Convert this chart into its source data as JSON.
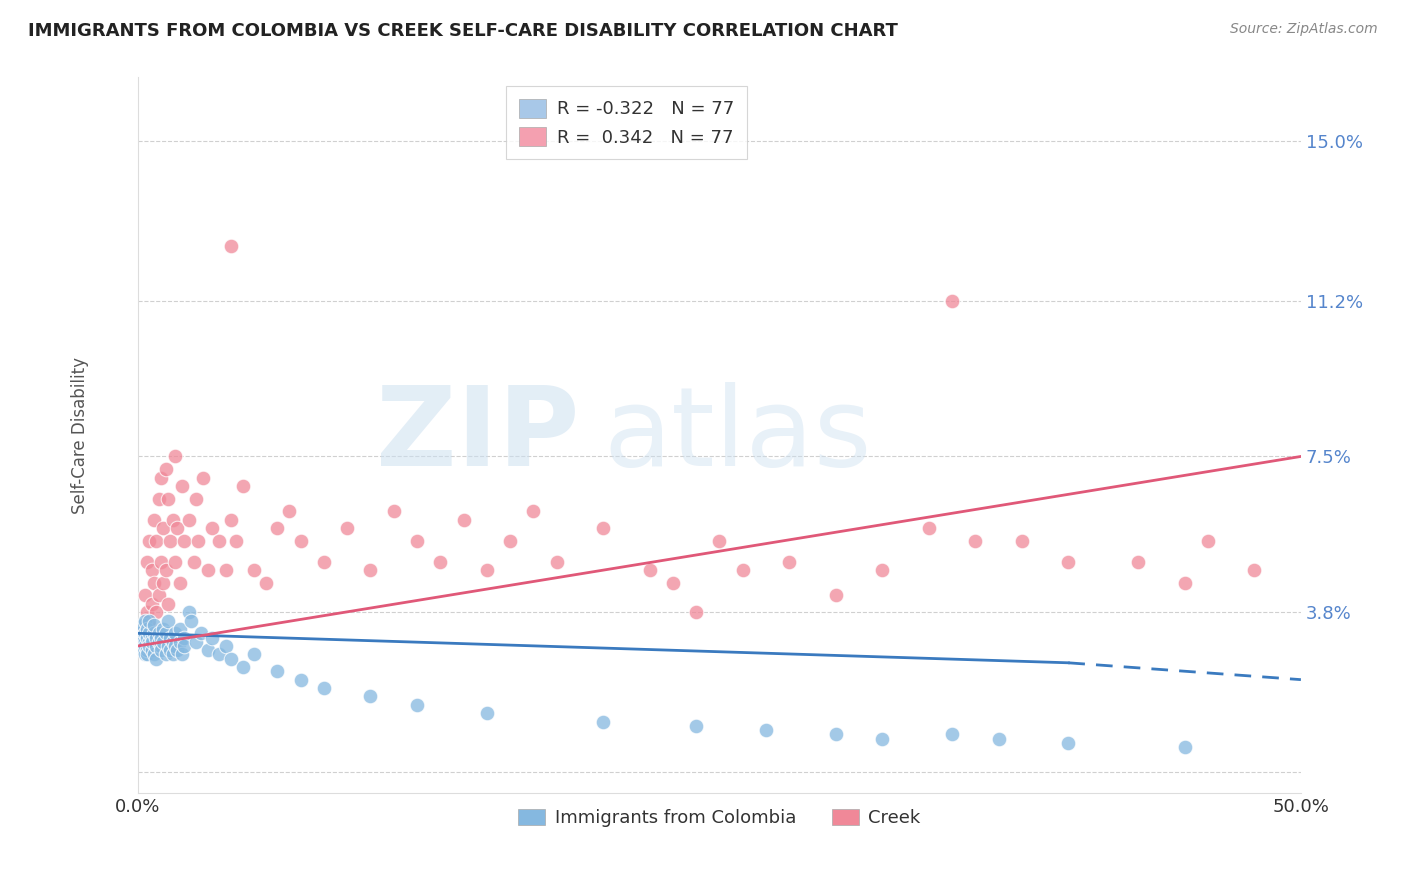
{
  "title": "IMMIGRANTS FROM COLOMBIA VS CREEK SELF-CARE DISABILITY CORRELATION CHART",
  "source": "Source: ZipAtlas.com",
  "ylabel": "Self-Care Disability",
  "xlim": [
    0.0,
    0.5
  ],
  "ylim": [
    -0.005,
    0.165
  ],
  "yticks": [
    0.0,
    0.038,
    0.075,
    0.112,
    0.15
  ],
  "ytick_labels": [
    "",
    "3.8%",
    "7.5%",
    "11.2%",
    "15.0%"
  ],
  "xticks": [
    0.0,
    0.1,
    0.2,
    0.3,
    0.4,
    0.5
  ],
  "xtick_labels": [
    "0.0%",
    "",
    "",
    "",
    "",
    "50.0%"
  ],
  "legend_entries": [
    {
      "color": "#a8c8e8",
      "label": "R = -0.322   N = 77"
    },
    {
      "color": "#f4a0b0",
      "label": "R =  0.342   N = 77"
    }
  ],
  "colombia_color": "#85b8e0",
  "creek_color": "#f08898",
  "colombia_line_color": "#3a7abf",
  "creek_line_color": "#e05878",
  "background_color": "#ffffff",
  "grid_color": "#d0d0d0",
  "right_axis_color": "#5585cc",
  "colombia_scatter": [
    [
      0.001,
      0.03
    ],
    [
      0.001,
      0.033
    ],
    [
      0.002,
      0.032
    ],
    [
      0.002,
      0.029
    ],
    [
      0.002,
      0.031
    ],
    [
      0.002,
      0.035
    ],
    [
      0.003,
      0.028
    ],
    [
      0.003,
      0.031
    ],
    [
      0.003,
      0.033
    ],
    [
      0.003,
      0.036
    ],
    [
      0.003,
      0.03
    ],
    [
      0.004,
      0.032
    ],
    [
      0.004,
      0.029
    ],
    [
      0.004,
      0.034
    ],
    [
      0.004,
      0.028
    ],
    [
      0.005,
      0.031
    ],
    [
      0.005,
      0.033
    ],
    [
      0.005,
      0.03
    ],
    [
      0.005,
      0.036
    ],
    [
      0.006,
      0.029
    ],
    [
      0.006,
      0.032
    ],
    [
      0.006,
      0.031
    ],
    [
      0.007,
      0.033
    ],
    [
      0.007,
      0.028
    ],
    [
      0.007,
      0.035
    ],
    [
      0.008,
      0.03
    ],
    [
      0.008,
      0.032
    ],
    [
      0.008,
      0.027
    ],
    [
      0.009,
      0.031
    ],
    [
      0.009,
      0.033
    ],
    [
      0.01,
      0.03
    ],
    [
      0.01,
      0.032
    ],
    [
      0.01,
      0.029
    ],
    [
      0.011,
      0.034
    ],
    [
      0.011,
      0.031
    ],
    [
      0.012,
      0.028
    ],
    [
      0.012,
      0.033
    ],
    [
      0.013,
      0.03
    ],
    [
      0.013,
      0.036
    ],
    [
      0.014,
      0.029
    ],
    [
      0.014,
      0.032
    ],
    [
      0.015,
      0.031
    ],
    [
      0.015,
      0.028
    ],
    [
      0.016,
      0.033
    ],
    [
      0.016,
      0.03
    ],
    [
      0.017,
      0.029
    ],
    [
      0.018,
      0.031
    ],
    [
      0.018,
      0.034
    ],
    [
      0.019,
      0.028
    ],
    [
      0.02,
      0.032
    ],
    [
      0.02,
      0.03
    ],
    [
      0.022,
      0.038
    ],
    [
      0.023,
      0.036
    ],
    [
      0.025,
      0.031
    ],
    [
      0.027,
      0.033
    ],
    [
      0.03,
      0.029
    ],
    [
      0.032,
      0.032
    ],
    [
      0.035,
      0.028
    ],
    [
      0.038,
      0.03
    ],
    [
      0.04,
      0.027
    ],
    [
      0.045,
      0.025
    ],
    [
      0.05,
      0.028
    ],
    [
      0.06,
      0.024
    ],
    [
      0.07,
      0.022
    ],
    [
      0.08,
      0.02
    ],
    [
      0.1,
      0.018
    ],
    [
      0.12,
      0.016
    ],
    [
      0.15,
      0.014
    ],
    [
      0.2,
      0.012
    ],
    [
      0.24,
      0.011
    ],
    [
      0.27,
      0.01
    ],
    [
      0.3,
      0.009
    ],
    [
      0.32,
      0.008
    ],
    [
      0.35,
      0.009
    ],
    [
      0.37,
      0.008
    ],
    [
      0.4,
      0.007
    ],
    [
      0.45,
      0.006
    ]
  ],
  "creek_scatter": [
    [
      0.002,
      0.033
    ],
    [
      0.003,
      0.042
    ],
    [
      0.004,
      0.038
    ],
    [
      0.004,
      0.05
    ],
    [
      0.005,
      0.035
    ],
    [
      0.005,
      0.055
    ],
    [
      0.006,
      0.04
    ],
    [
      0.006,
      0.048
    ],
    [
      0.007,
      0.045
    ],
    [
      0.007,
      0.06
    ],
    [
      0.008,
      0.038
    ],
    [
      0.008,
      0.055
    ],
    [
      0.009,
      0.042
    ],
    [
      0.009,
      0.065
    ],
    [
      0.01,
      0.05
    ],
    [
      0.01,
      0.07
    ],
    [
      0.011,
      0.045
    ],
    [
      0.011,
      0.058
    ],
    [
      0.012,
      0.048
    ],
    [
      0.012,
      0.072
    ],
    [
      0.013,
      0.04
    ],
    [
      0.013,
      0.065
    ],
    [
      0.014,
      0.055
    ],
    [
      0.015,
      0.06
    ],
    [
      0.016,
      0.05
    ],
    [
      0.016,
      0.075
    ],
    [
      0.017,
      0.058
    ],
    [
      0.018,
      0.045
    ],
    [
      0.019,
      0.068
    ],
    [
      0.02,
      0.055
    ],
    [
      0.022,
      0.06
    ],
    [
      0.024,
      0.05
    ],
    [
      0.025,
      0.065
    ],
    [
      0.026,
      0.055
    ],
    [
      0.028,
      0.07
    ],
    [
      0.03,
      0.048
    ],
    [
      0.032,
      0.058
    ],
    [
      0.035,
      0.055
    ],
    [
      0.038,
      0.048
    ],
    [
      0.04,
      0.06
    ],
    [
      0.04,
      0.125
    ],
    [
      0.042,
      0.055
    ],
    [
      0.045,
      0.068
    ],
    [
      0.05,
      0.048
    ],
    [
      0.055,
      0.045
    ],
    [
      0.06,
      0.058
    ],
    [
      0.065,
      0.062
    ],
    [
      0.07,
      0.055
    ],
    [
      0.08,
      0.05
    ],
    [
      0.09,
      0.058
    ],
    [
      0.1,
      0.048
    ],
    [
      0.11,
      0.062
    ],
    [
      0.12,
      0.055
    ],
    [
      0.13,
      0.05
    ],
    [
      0.14,
      0.06
    ],
    [
      0.15,
      0.048
    ],
    [
      0.16,
      0.055
    ],
    [
      0.17,
      0.062
    ],
    [
      0.18,
      0.05
    ],
    [
      0.2,
      0.058
    ],
    [
      0.22,
      0.048
    ],
    [
      0.23,
      0.045
    ],
    [
      0.24,
      0.038
    ],
    [
      0.25,
      0.055
    ],
    [
      0.26,
      0.048
    ],
    [
      0.28,
      0.05
    ],
    [
      0.3,
      0.042
    ],
    [
      0.32,
      0.048
    ],
    [
      0.34,
      0.058
    ],
    [
      0.36,
      0.055
    ],
    [
      0.38,
      0.055
    ],
    [
      0.4,
      0.05
    ],
    [
      0.35,
      0.112
    ],
    [
      0.43,
      0.05
    ],
    [
      0.45,
      0.045
    ],
    [
      0.46,
      0.055
    ],
    [
      0.48,
      0.048
    ]
  ],
  "colombia_line": [
    [
      0.0,
      0.033
    ],
    [
      0.4,
      0.026
    ]
  ],
  "colombia_line_dashed": [
    [
      0.4,
      0.026
    ],
    [
      0.5,
      0.022
    ]
  ],
  "creek_line": [
    [
      0.0,
      0.03
    ],
    [
      0.5,
      0.075
    ]
  ]
}
